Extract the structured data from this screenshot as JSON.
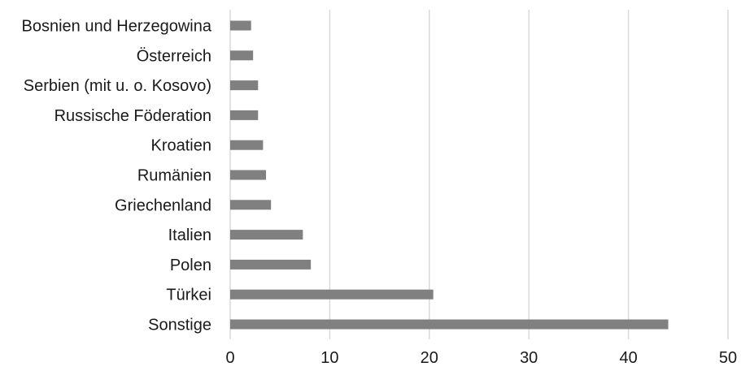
{
  "chart_data": {
    "type": "bar",
    "orientation": "horizontal",
    "categories": [
      "Bosnien und Herzegowina",
      "Österreich",
      "Serbien (mit u. o. Kosovo)",
      "Russische Föderation",
      "Kroatien",
      "Rumänien",
      "Griechenland",
      "Italien",
      "Polen",
      "Türkei",
      "Sonstige"
    ],
    "values": [
      2.1,
      2.3,
      2.8,
      2.8,
      3.3,
      3.6,
      4.1,
      7.3,
      8.1,
      20.4,
      44.0
    ],
    "xlim": [
      0,
      50
    ],
    "xticks": [
      "0",
      "10",
      "20",
      "30",
      "40",
      "50"
    ],
    "title": "",
    "xlabel": "",
    "ylabel": "",
    "grid": "vertical",
    "legend": "none",
    "bar_color": "#808080",
    "grid_color": "#d9d9d9"
  }
}
